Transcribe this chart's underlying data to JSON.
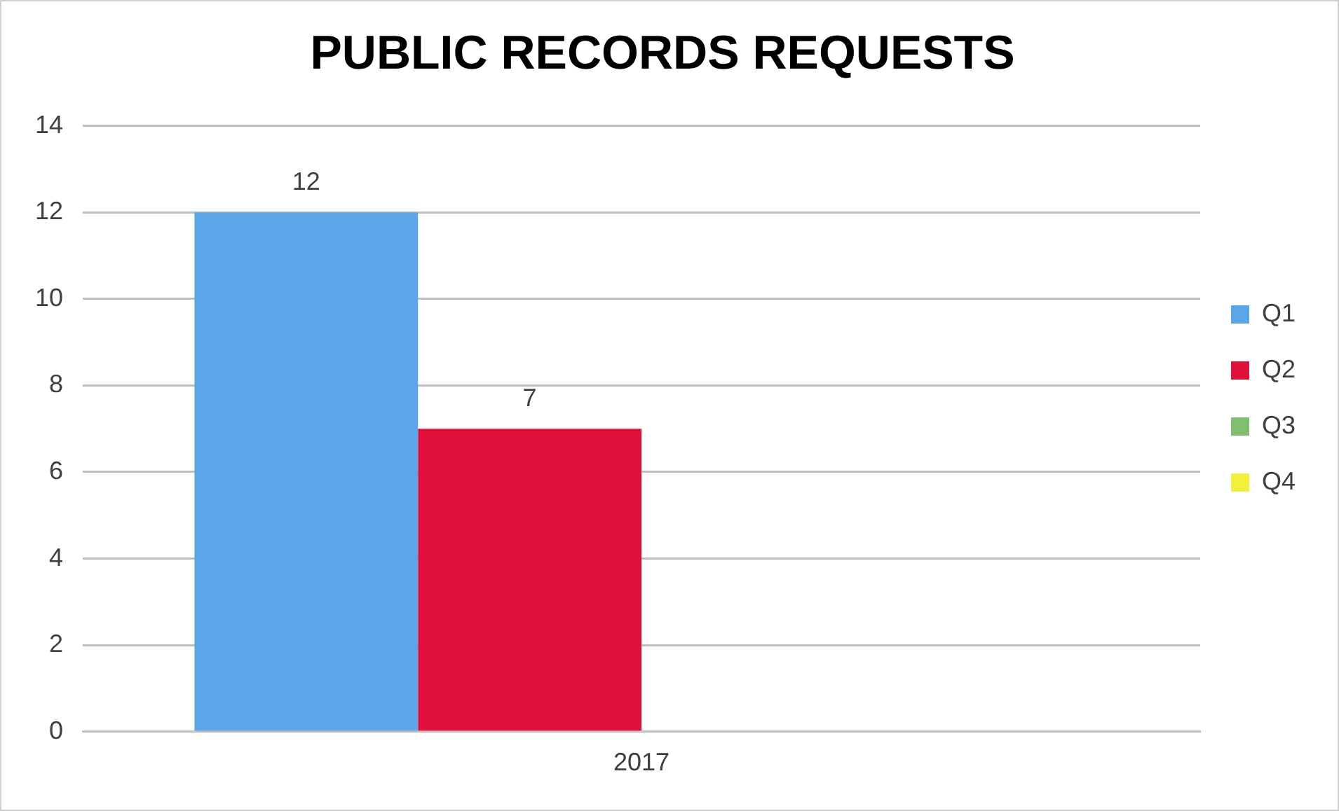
{
  "chart_data": {
    "type": "bar",
    "title": "PUBLIC RECORDS REQUESTS",
    "categories": [
      "2017"
    ],
    "series": [
      {
        "name": "Q1",
        "color": "#5ba6e8",
        "values": [
          12
        ]
      },
      {
        "name": "Q2",
        "color": "#e0103a",
        "values": [
          7
        ]
      },
      {
        "name": "Q3",
        "color": "#7fbf6f",
        "values": [
          null
        ]
      },
      {
        "name": "Q4",
        "color": "#f2f03c",
        "values": [
          null
        ]
      }
    ],
    "ylim": [
      0,
      14
    ],
    "yticks": [
      0,
      2,
      4,
      6,
      8,
      10,
      12,
      14
    ],
    "grid": "y",
    "legend": "right",
    "data_labels": true
  }
}
